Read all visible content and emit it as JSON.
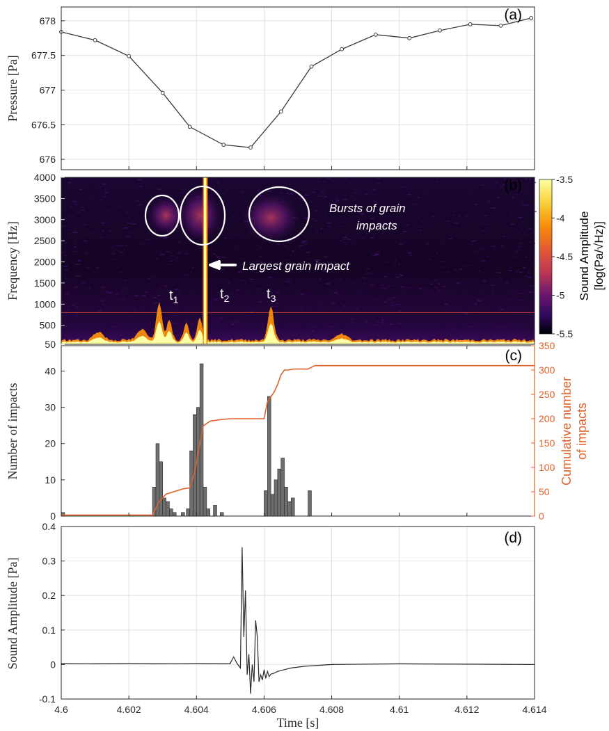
{
  "chart_data": [
    {
      "type": "line",
      "panel_label": "(a)",
      "ylabel": "Pressure [Pa]",
      "ylim": [
        675.85,
        678.2
      ],
      "yticks": [
        676,
        676.5,
        677,
        677.5,
        678
      ],
      "ytick_labels": [
        "676",
        "676.5",
        "677",
        "677.5",
        "678"
      ],
      "xlim": [
        4.6,
        4.614
      ],
      "grid": true,
      "series": [
        {
          "x": [
            4.6,
            4.601,
            4.602,
            4.603,
            4.6038,
            4.6048,
            4.6056,
            4.6065,
            4.6074,
            4.6083,
            4.6093,
            4.6103,
            4.6112,
            4.6121,
            4.613,
            4.6139
          ],
          "y": [
            677.84,
            677.72,
            677.49,
            676.96,
            676.47,
            676.21,
            676.17,
            676.69,
            677.34,
            677.59,
            677.8,
            677.75,
            677.86,
            677.95,
            677.93,
            678.04
          ],
          "color": "#3a3a3a"
        }
      ]
    },
    {
      "type": "heatmap",
      "panel_label": "(b)",
      "ylabel": "Frequency [Hz]",
      "ylim": [
        50,
        4000
      ],
      "yticks": [
        50,
        500,
        1000,
        1500,
        2000,
        2500,
        3000,
        3500,
        4000
      ],
      "ytick_labels": [
        "50",
        "500",
        "1000",
        "1500",
        "2000",
        "2500",
        "3000",
        "3500",
        "4000"
      ],
      "xlim": [
        4.6,
        4.614
      ],
      "colorbar": {
        "label_line1": "Sound Amplitude",
        "label_line2": "[log(Pa/√Hz)]",
        "range": [
          -5.5,
          -3.5
        ],
        "ticks": [
          -3.5,
          -4,
          -4.5,
          -5,
          -5.5
        ],
        "tick_labels": [
          "-3.5",
          "-4",
          "-4.5",
          "-5",
          "-5.5"
        ]
      },
      "annotations": {
        "bursts": "Bursts of grain impacts",
        "largest": "Largest grain impact",
        "t1": "t",
        "t1_sub": "1",
        "t2": "t",
        "t2_sub": "2",
        "t3": "t",
        "t3_sub": "3"
      }
    },
    {
      "type": "bar",
      "panel_label": "(c)",
      "ylabel": "Number of impacts",
      "ylim": [
        0,
        47
      ],
      "yticks": [
        0,
        10,
        20,
        30,
        40
      ],
      "ytick_labels": [
        "0",
        "10",
        "20",
        "30",
        "40"
      ],
      "y2label_line1": "Cumulative number",
      "y2label_line2": "of impacts",
      "y2lim": [
        0,
        350
      ],
      "y2ticks": [
        0,
        50,
        100,
        150,
        200,
        250,
        300,
        350
      ],
      "y2tick_labels": [
        "0",
        "50",
        "100",
        "150",
        "200",
        "250",
        "300",
        "350"
      ],
      "xlim": [
        4.6,
        4.614
      ],
      "bar_color": "#6e6e6e",
      "line_color": "#e0622a",
      "bars": {
        "x": [
          4.60005,
          4.60275,
          4.60285,
          4.60295,
          4.60305,
          4.60315,
          4.60325,
          4.60335,
          4.6036,
          4.60375,
          4.60385,
          4.60395,
          4.60405,
          4.60415,
          4.60425,
          4.60435,
          4.60455,
          4.60475,
          4.60605,
          4.60615,
          4.60625,
          4.60635,
          4.60645,
          4.60655,
          4.60665,
          4.60675,
          4.60685,
          4.60735
        ],
        "values": [
          1,
          8,
          20,
          15,
          5,
          4,
          2,
          1,
          1,
          2,
          18,
          28,
          30,
          42,
          8,
          2,
          3,
          1,
          7,
          33,
          6,
          10,
          13,
          16,
          8,
          4,
          5,
          7
        ]
      },
      "cumulative": {
        "x": [
          4.6,
          4.6027,
          4.6029,
          4.6031,
          4.6036,
          4.6038,
          4.6039,
          4.604,
          4.6041,
          4.6042,
          4.6044,
          4.6047,
          4.605,
          4.606,
          4.6061,
          4.6062,
          4.6063,
          4.6064,
          4.6065,
          4.6066,
          4.6067,
          4.6069,
          4.6073,
          4.6075,
          4.614
        ],
        "y": [
          2,
          2,
          30,
          45,
          56,
          58,
          80,
          110,
          150,
          185,
          195,
          198,
          200,
          200,
          235,
          245,
          255,
          270,
          290,
          300,
          300,
          302,
          302,
          309,
          309
        ]
      }
    },
    {
      "type": "line",
      "panel_label": "(d)",
      "ylabel": "Sound Amplitude [Pa]",
      "xlabel": "Time [s]",
      "ylim": [
        -0.1,
        0.4
      ],
      "yticks": [
        -0.1,
        0,
        0.1,
        0.2,
        0.3,
        0.4
      ],
      "ytick_labels": [
        "-0.1",
        "0",
        "0.1",
        "0.2",
        "0.3",
        "0.4"
      ],
      "xlim": [
        4.6,
        4.614
      ],
      "xticks": [
        4.6,
        4.602,
        4.604,
        4.606,
        4.608,
        4.61,
        4.612,
        4.614
      ],
      "xtick_labels": [
        "4.6",
        "4.602",
        "4.604",
        "4.606",
        "4.608",
        "4.61",
        "4.612",
        "4.614"
      ],
      "grid": true,
      "series": [
        {
          "x": [
            4.6,
            4.601,
            4.602,
            4.603,
            4.604,
            4.605,
            4.605,
            4.6051,
            4.6052,
            4.6053,
            4.60535,
            4.6054,
            4.60545,
            4.6055,
            4.60555,
            4.6056,
            4.60565,
            4.6057,
            4.60575,
            4.6058,
            4.60585,
            4.6059,
            4.60595,
            4.606,
            4.60605,
            4.6061,
            4.60615,
            4.6062,
            4.6063,
            4.6064,
            4.6066,
            4.6068,
            4.6072,
            4.608,
            4.61,
            4.612,
            4.614
          ],
          "y": [
            0.003,
            0.002,
            0.003,
            0.002,
            0.003,
            0.002,
            0.004,
            0.022,
            0.003,
            -0.01,
            0.34,
            0.08,
            0.215,
            -0.03,
            0.03,
            -0.085,
            0.0,
            -0.05,
            0.128,
            0.08,
            -0.05,
            -0.03,
            -0.045,
            -0.015,
            -0.04,
            -0.02,
            -0.035,
            -0.028,
            -0.025,
            -0.02,
            -0.015,
            -0.01,
            -0.005,
            0.0,
            0.002,
            0.001,
            0.0
          ],
          "color": "#2a2a2a"
        }
      ]
    }
  ]
}
